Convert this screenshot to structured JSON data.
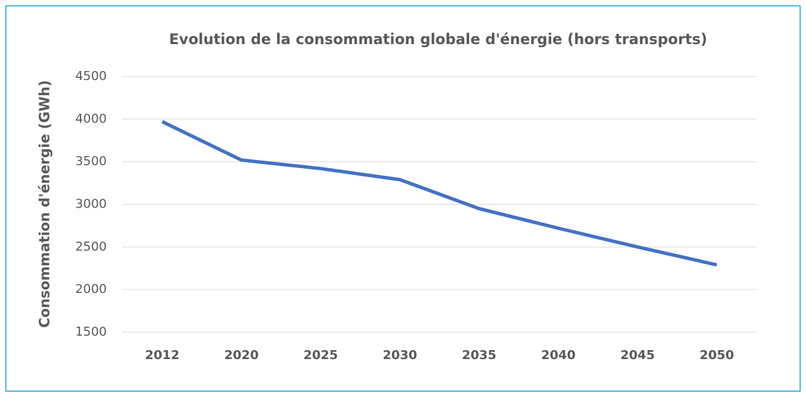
{
  "chart_data": {
    "type": "line",
    "title": "Evolution de la consommation globale d'énergie (hors transports)",
    "y_label": "Consommation d'énergie (GWh)",
    "categories": [
      "2012",
      "2020",
      "2025",
      "2030",
      "2035",
      "2040",
      "2045",
      "2050"
    ],
    "series": [
      {
        "name": "Consommation",
        "color": "#4472c4",
        "values": [
          3970,
          3520,
          3420,
          3290,
          2950,
          2720,
          2500,
          2290
        ]
      }
    ],
    "ylim": [
      1500,
      4500
    ],
    "yticks": [
      1500,
      2000,
      2500,
      3000,
      3500,
      4000,
      4500
    ],
    "grid": true
  }
}
